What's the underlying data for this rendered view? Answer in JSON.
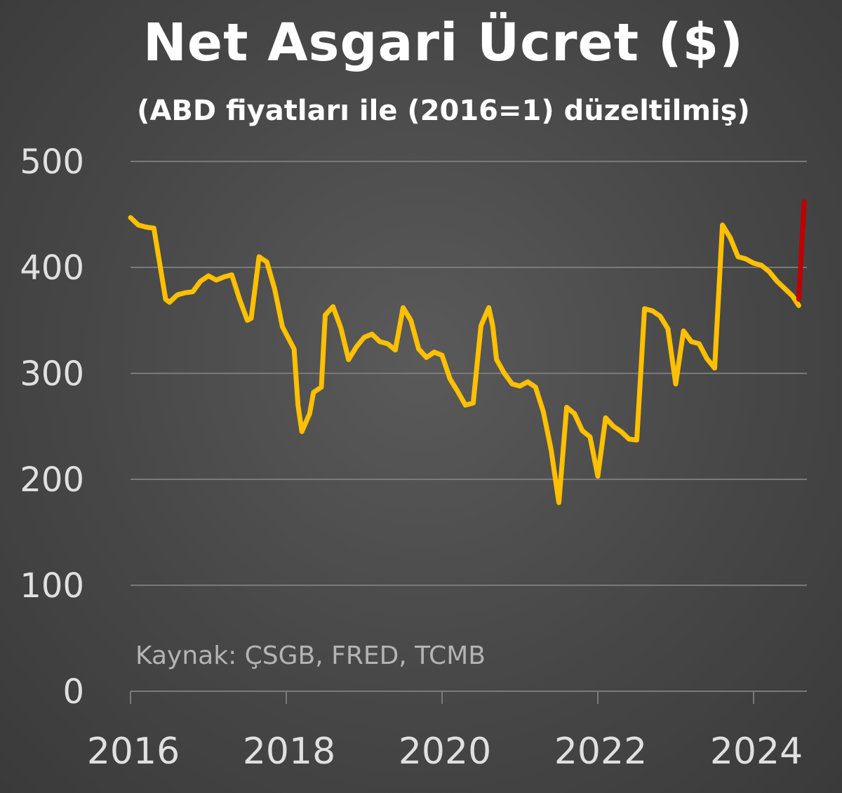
{
  "chart_data": {
    "type": "line",
    "title": "Net Asgari Ücret ($)",
    "subtitle": "(ABD fiyatları ile (2016=1) düzeltilmiş)",
    "source": "Kaynak: ÇSGB, FRED, TCMB",
    "ylim": [
      0,
      500
    ],
    "yticks": [
      "0",
      "100",
      "200",
      "300",
      "400",
      "500"
    ],
    "xlim": [
      2016,
      2024.7
    ],
    "xticks": [
      "2016",
      "2018",
      "2020",
      "2022",
      "2024"
    ],
    "grid": true,
    "colors": {
      "main": "#FFC000",
      "latest": "#C00000",
      "grid": "#7a7a7a"
    },
    "series": [
      {
        "color": "#FFC000",
        "x": [
          2016.0,
          2016.1,
          2016.2,
          2016.3,
          2016.45,
          2016.5,
          2016.6,
          2016.7,
          2016.8,
          2016.9,
          2017.0,
          2017.1,
          2017.2,
          2017.3,
          2017.4,
          2017.5,
          2017.55,
          2017.65,
          2017.75,
          2017.85,
          2017.95,
          2018.0,
          2018.1,
          2018.15,
          2018.2,
          2018.3,
          2018.35,
          2018.45,
          2018.5,
          2018.6,
          2018.7,
          2018.8,
          2018.9,
          2019.0,
          2019.1,
          2019.2,
          2019.3,
          2019.4,
          2019.5,
          2019.6,
          2019.7,
          2019.8,
          2019.9,
          2020.0,
          2020.1,
          2020.2,
          2020.3,
          2020.4,
          2020.5,
          2020.6,
          2020.65,
          2020.7,
          2020.8,
          2020.9,
          2021.0,
          2021.1,
          2021.2,
          2021.3,
          2021.4,
          2021.5,
          2021.6,
          2021.7,
          2021.8,
          2021.9,
          2022.0,
          2022.1,
          2022.2,
          2022.3,
          2022.4,
          2022.5,
          2022.6,
          2022.7,
          2022.8,
          2022.9,
          2023.0,
          2023.1,
          2023.2,
          2023.3,
          2023.4,
          2023.5,
          2023.6,
          2023.7,
          2023.8,
          2023.9,
          2024.0,
          2024.1,
          2024.2,
          2024.3,
          2024.4,
          2024.5,
          2024.58
        ],
        "values": [
          447,
          440,
          438,
          437,
          370,
          367,
          374,
          376,
          377,
          387,
          392,
          388,
          391,
          393,
          370,
          350,
          352,
          410,
          405,
          380,
          344,
          337,
          323,
          270,
          245,
          262,
          282,
          287,
          355,
          363,
          343,
          313,
          325,
          334,
          337,
          330,
          328,
          322,
          362,
          350,
          323,
          315,
          320,
          317,
          295,
          283,
          270,
          272,
          345,
          362,
          345,
          313,
          300,
          290,
          288,
          292,
          287,
          264,
          228,
          178,
          268,
          262,
          246,
          240,
          203,
          258,
          250,
          245,
          238,
          237,
          361,
          359,
          354,
          342,
          290,
          340,
          330,
          328,
          314,
          305,
          440,
          428,
          410,
          408,
          404,
          402,
          396,
          387,
          380,
          373,
          364
        ]
      },
      {
        "color": "#C00000",
        "x": [
          2024.58,
          2024.65
        ],
        "values": [
          370,
          462
        ]
      }
    ]
  }
}
